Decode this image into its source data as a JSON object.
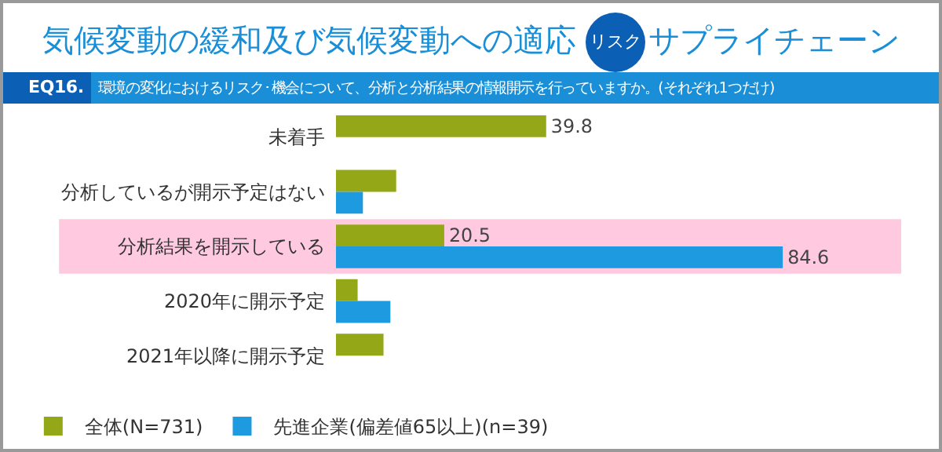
{
  "chart_data": {
    "type": "bar",
    "orientation": "horizontal",
    "title": "気候変動の緩和及び気候変動への適応",
    "annotations": [
      "リスク",
      "サプライチェーン"
    ],
    "subtitle": "EQ16. 環境の変化におけるリスク･機会について、分析と分析結果の情報開示を行っていますか。(それぞれ1つだけ)",
    "categories": [
      "未着手",
      "分析しているが開示予定はない",
      "分析結果を開示している",
      "2020年に開示予定",
      "2021年以降に開示予定"
    ],
    "series": [
      {
        "name": "全体(N=731)",
        "color": "#94a817",
        "values": [
          39.8,
          11.4,
          20.5,
          4.1,
          9.0
        ],
        "value_labels": [
          "39.8",
          null,
          "20.5",
          null,
          null
        ]
      },
      {
        "name": "先進企業(偏差値65以上)(n=39)",
        "color": "#1e9be0",
        "values": [
          null,
          5.1,
          84.6,
          10.3,
          null
        ],
        "value_labels": [
          null,
          null,
          "84.6",
          null,
          null
        ]
      }
    ],
    "bands": [
      {
        "axis": "y",
        "from": "分析結果を開示している",
        "to": "分析結果を開示している",
        "color": "#ffcadf"
      }
    ],
    "legend": "bottom",
    "grid": false
  }
}
